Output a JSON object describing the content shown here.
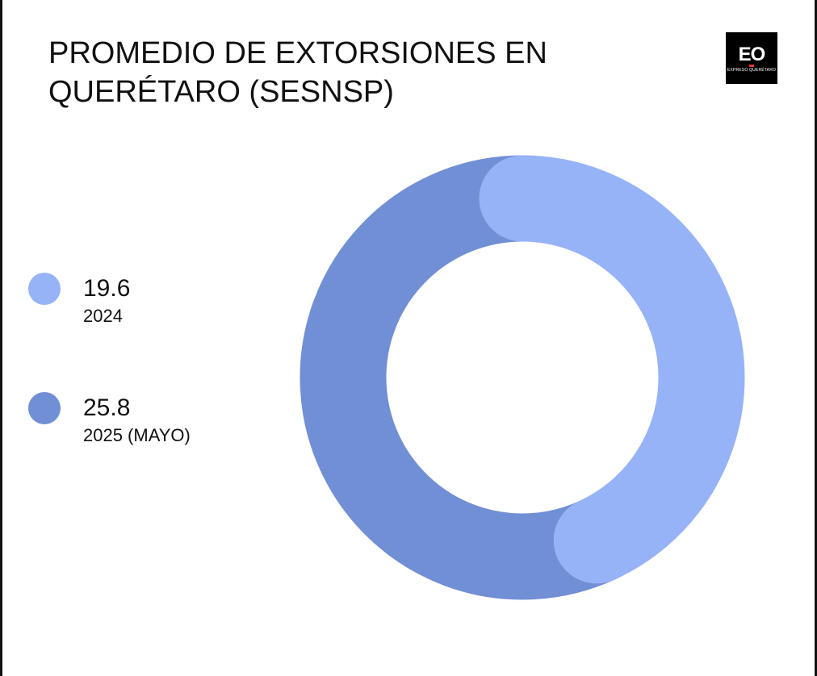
{
  "chart_data": {
    "type": "pie",
    "title": "PROMEDIO DE EXTORSIONES EN QUERÉTARO (SESNSP)",
    "title_lines": [
      "PROMEDIO DE EXTORSIONES EN",
      "QUERÉTARO (SESNSP)"
    ],
    "donut": true,
    "legend_position": "left",
    "slices": [
      {
        "label": "2024",
        "value": 19.6,
        "value_text": "19.6",
        "color": "#96b3f8"
      },
      {
        "label": "2025 (MAYO)",
        "value": 25.8,
        "value_text": "25.8",
        "color": "#718fd4"
      }
    ]
  },
  "logo": {
    "text": "EO",
    "subtext": "EXPRESO QUERÉTARO",
    "icon": "eo-logo-icon"
  }
}
